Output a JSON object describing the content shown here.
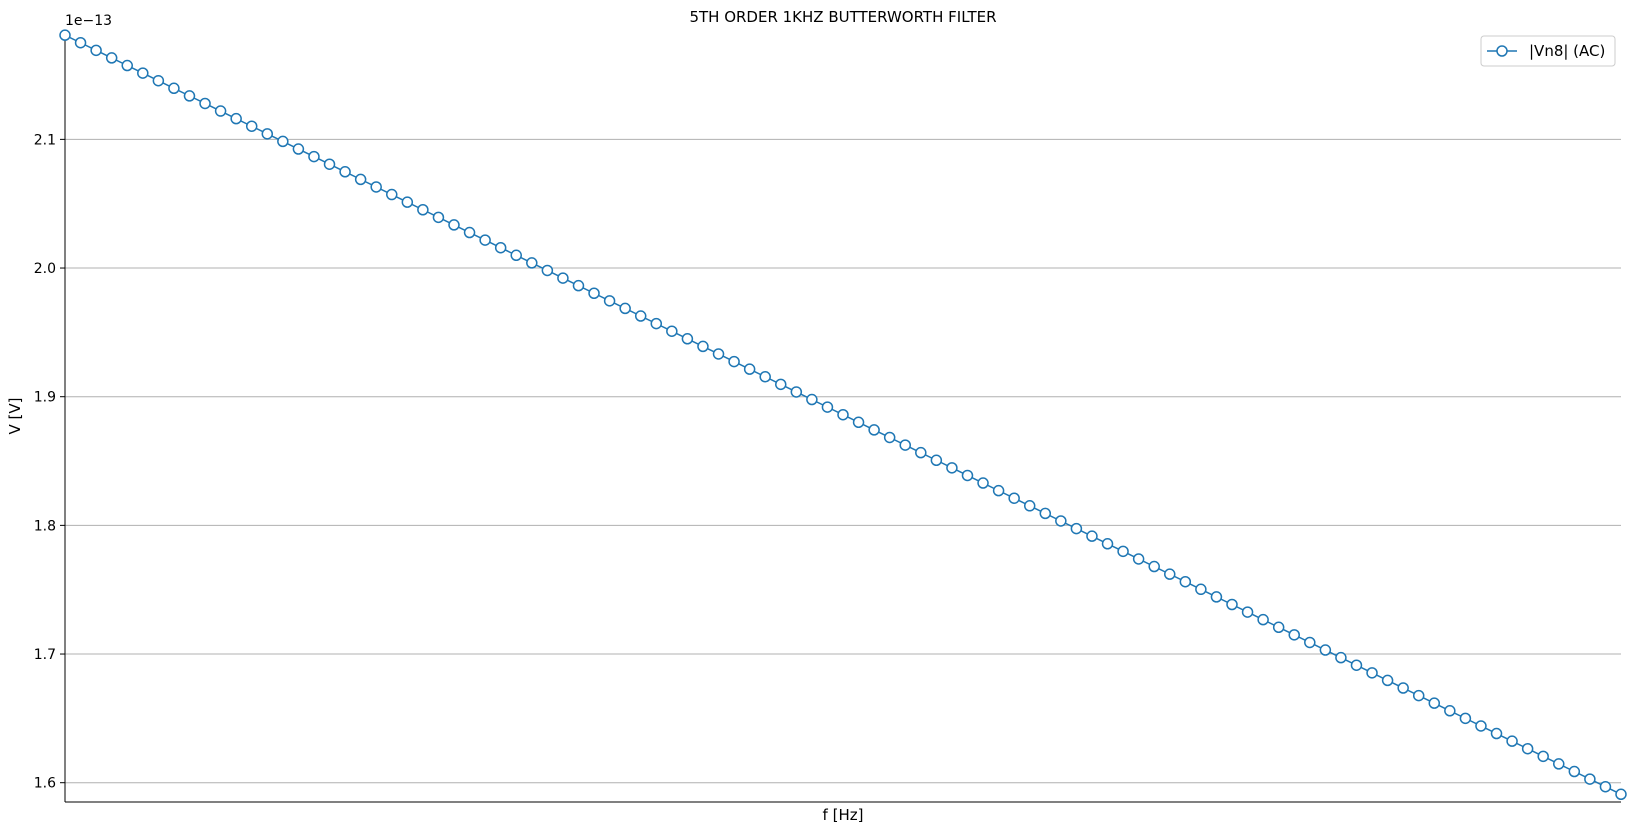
{
  "chart_data": {
    "type": "line",
    "title": "5TH ORDER 1KHZ BUTTERWORTH FILTER",
    "xlabel": "f [Hz]",
    "ylabel": "V [V]",
    "y_offset_label": "1e−13",
    "y_scale_exponent": -13,
    "yticks": [
      "1.6",
      "1.7",
      "1.8",
      "1.9",
      "2.0",
      "2.1"
    ],
    "ylim": [
      1.585,
      2.185
    ],
    "xticks": [],
    "grid": "y",
    "legend_position": "upper right",
    "series": [
      {
        "name": "|Vn8| (AC)",
        "color": "#1f77b4",
        "marker": "circle-open",
        "point_count": 101,
        "y_first": 2.181,
        "y_last": 1.591
      }
    ]
  }
}
